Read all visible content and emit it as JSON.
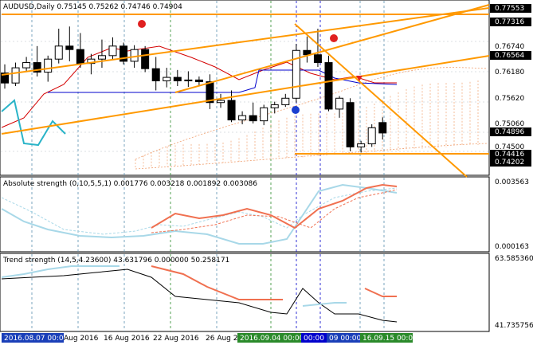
{
  "symbol_header": "AUDUSD,Daily  0.75145 0.75262 0.74746 0.74904",
  "colors": {
    "bull_candle": "#ffffff",
    "bear_candle": "#000000",
    "grid": "#b8c0c8",
    "trendline": "#ff9900",
    "ichimoku_cloud": "#f0a070",
    "tenkan": "#d40000",
    "kijun": "#0000cc",
    "chikou": "#2ab4c8",
    "abs_bull": "#a8d8e8",
    "abs_bear": "#f07050",
    "label_box": "#000000",
    "current_price_box": "#000000"
  },
  "main_panel": {
    "price_labels": [
      {
        "text": "0.77553",
        "boxed": true
      },
      {
        "text": "0.77316",
        "boxed": true
      },
      {
        "text": "0.76740",
        "boxed": false
      },
      {
        "text": "0.76564",
        "boxed": true
      },
      {
        "text": "0.76180",
        "boxed": false
      },
      {
        "text": "0.75620",
        "boxed": false
      },
      {
        "text": "0.75060",
        "boxed": false
      },
      {
        "text": "0.74896",
        "boxed": true
      },
      {
        "text": "0.74500",
        "boxed": false
      },
      {
        "text": "0.74416",
        "boxed": true
      },
      {
        "text": "0.74202",
        "boxed": true
      }
    ]
  },
  "chart_data": {
    "type": "candlestick",
    "candles": [
      {
        "o": 0.7628,
        "h": 0.7648,
        "l": 0.7592,
        "c": 0.7605
      },
      {
        "o": 0.7605,
        "h": 0.7652,
        "l": 0.7598,
        "c": 0.764
      },
      {
        "o": 0.764,
        "h": 0.7665,
        "l": 0.763,
        "c": 0.7652
      },
      {
        "o": 0.7652,
        "h": 0.769,
        "l": 0.762,
        "c": 0.763
      },
      {
        "o": 0.763,
        "h": 0.7668,
        "l": 0.7608,
        "c": 0.766
      },
      {
        "o": 0.766,
        "h": 0.773,
        "l": 0.765,
        "c": 0.769
      },
      {
        "o": 0.769,
        "h": 0.7735,
        "l": 0.7655,
        "c": 0.7682
      },
      {
        "o": 0.7682,
        "h": 0.772,
        "l": 0.764,
        "c": 0.765
      },
      {
        "o": 0.765,
        "h": 0.7672,
        "l": 0.7625,
        "c": 0.766
      },
      {
        "o": 0.766,
        "h": 0.7705,
        "l": 0.764,
        "c": 0.7668
      },
      {
        "o": 0.7668,
        "h": 0.771,
        "l": 0.7658,
        "c": 0.769
      },
      {
        "o": 0.769,
        "h": 0.7698,
        "l": 0.7648,
        "c": 0.7655
      },
      {
        "o": 0.7655,
        "h": 0.7692,
        "l": 0.764,
        "c": 0.7682
      },
      {
        "o": 0.7682,
        "h": 0.769,
        "l": 0.763,
        "c": 0.7638
      },
      {
        "o": 0.7638,
        "h": 0.7665,
        "l": 0.7588,
        "c": 0.761
      },
      {
        "o": 0.761,
        "h": 0.764,
        "l": 0.7595,
        "c": 0.7618
      },
      {
        "o": 0.7618,
        "h": 0.7635,
        "l": 0.7598,
        "c": 0.761
      },
      {
        "o": 0.761,
        "h": 0.7632,
        "l": 0.7596,
        "c": 0.7612
      },
      {
        "o": 0.7612,
        "h": 0.762,
        "l": 0.7598,
        "c": 0.7608
      },
      {
        "o": 0.7608,
        "h": 0.7625,
        "l": 0.7545,
        "c": 0.756
      },
      {
        "o": 0.756,
        "h": 0.758,
        "l": 0.7548,
        "c": 0.7565
      },
      {
        "o": 0.7565,
        "h": 0.7588,
        "l": 0.7515,
        "c": 0.752
      },
      {
        "o": 0.752,
        "h": 0.754,
        "l": 0.751,
        "c": 0.753
      },
      {
        "o": 0.753,
        "h": 0.756,
        "l": 0.7512,
        "c": 0.7518
      },
      {
        "o": 0.7518,
        "h": 0.7555,
        "l": 0.7508,
        "c": 0.7548
      },
      {
        "o": 0.7548,
        "h": 0.7562,
        "l": 0.7535,
        "c": 0.7555
      },
      {
        "o": 0.7555,
        "h": 0.758,
        "l": 0.755,
        "c": 0.757
      },
      {
        "o": 0.757,
        "h": 0.7695,
        "l": 0.756,
        "c": 0.768
      },
      {
        "o": 0.768,
        "h": 0.7712,
        "l": 0.7652,
        "c": 0.767
      },
      {
        "o": 0.767,
        "h": 0.773,
        "l": 0.7642,
        "c": 0.7652
      },
      {
        "o": 0.7652,
        "h": 0.7668,
        "l": 0.754,
        "c": 0.7545
      },
      {
        "o": 0.7545,
        "h": 0.7575,
        "l": 0.7525,
        "c": 0.757
      },
      {
        "o": 0.756,
        "h": 0.757,
        "l": 0.7448,
        "c": 0.7458
      },
      {
        "o": 0.7458,
        "h": 0.7472,
        "l": 0.7445,
        "c": 0.7465
      },
      {
        "o": 0.7465,
        "h": 0.751,
        "l": 0.7458,
        "c": 0.7502
      },
      {
        "o": 0.7514,
        "h": 0.7526,
        "l": 0.7475,
        "c": 0.749
      }
    ],
    "y_range": [
      0.74,
      0.7785
    ]
  },
  "abs_panel": {
    "title": "Absolute strength (0,10,5,5,1) 0.001776 0.003218 0.001892 0.003086",
    "scale_top": "0.003563",
    "scale_bottom": "0.000163"
  },
  "trend_panel": {
    "title": "Trend strength (14,5,4.23600) 43.631796 0.000000 50.258171",
    "scale_top": "63.585360",
    "scale_bottom": "41.735756"
  },
  "time_axis": {
    "labels": [
      {
        "text": "2016.08.07 00:00",
        "boxed": true
      },
      {
        "text": "Aug 2016",
        "boxed": false
      },
      {
        "text": "16 Aug 2016",
        "boxed": false
      },
      {
        "text": "22 Aug 2016",
        "boxed": false
      },
      {
        "text": "26 Aug 20",
        "boxed": false
      },
      {
        "text": "2016.09.04 00:00",
        "boxed": true
      },
      {
        "text": "00:00",
        "boxed": true
      },
      {
        "text": "09 00:00",
        "boxed": true
      },
      {
        "text": "16.09.15 00:00",
        "boxed": true
      }
    ]
  }
}
